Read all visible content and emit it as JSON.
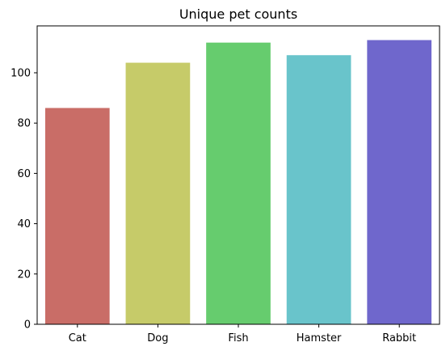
{
  "chart_data": {
    "type": "bar",
    "title": "Unique pet counts",
    "xlabel": "",
    "ylabel": "",
    "categories": [
      "Cat",
      "Dog",
      "Fish",
      "Hamster",
      "Rabbit"
    ],
    "values": [
      86,
      104,
      112,
      107,
      113
    ],
    "colors": [
      "#c96d67",
      "#c6cb69",
      "#66cc6e",
      "#69c4cb",
      "#6f67cc"
    ],
    "ylim": [
      0,
      118.65
    ],
    "yticks": [
      0,
      20,
      40,
      60,
      80,
      100
    ],
    "grid": false,
    "legend": "none"
  }
}
